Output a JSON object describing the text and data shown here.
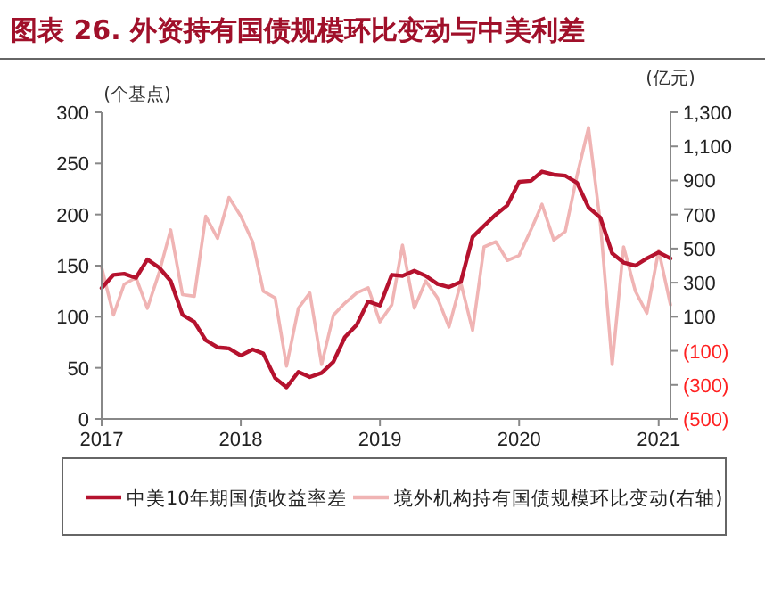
{
  "chart_data": {
    "type": "line",
    "title": "图表 26. 外资持有国债规模环比变动与中美利差",
    "ylabel": "(个基点)",
    "y2label": "(亿元)",
    "x": [
      "2017-01",
      "2017-02",
      "2017-03",
      "2017-04",
      "2017-05",
      "2017-06",
      "2017-07",
      "2017-08",
      "2017-09",
      "2017-10",
      "2017-11",
      "2017-12",
      "2018-01",
      "2018-02",
      "2018-03",
      "2018-04",
      "2018-05",
      "2018-06",
      "2018-07",
      "2018-08",
      "2018-09",
      "2018-10",
      "2018-11",
      "2018-12",
      "2019-01",
      "2019-02",
      "2019-03",
      "2019-04",
      "2019-05",
      "2019-06",
      "2019-07",
      "2019-08",
      "2019-09",
      "2019-10",
      "2019-11",
      "2019-12",
      "2020-01",
      "2020-02",
      "2020-03",
      "2020-04",
      "2020-05",
      "2020-06",
      "2020-07",
      "2020-08",
      "2020-09",
      "2020-10",
      "2020-11",
      "2020-12",
      "2021-01",
      "2021-02"
    ],
    "series": [
      {
        "name": "中美10年期国债收益率差",
        "color": "#b5122e",
        "values": [
          128,
          141,
          142,
          138,
          156,
          148,
          135,
          102,
          95,
          77,
          70,
          69,
          62,
          68,
          64,
          40,
          31,
          46,
          41,
          45,
          56,
          80,
          92,
          115,
          111,
          141,
          140,
          145,
          140,
          132,
          129,
          134,
          178,
          189,
          200,
          209,
          232,
          233,
          242,
          239,
          238,
          231,
          207,
          197,
          162,
          153,
          150,
          157,
          163,
          157
        ]
      },
      {
        "name": "境外机构持有国债规模环比变动(右轴)",
        "color": "#f0b4b4",
        "axis": "y2",
        "values": [
          390,
          110,
          290,
          330,
          150,
          360,
          610,
          230,
          220,
          690,
          560,
          800,
          690,
          540,
          250,
          210,
          -190,
          150,
          240,
          -180,
          110,
          180,
          240,
          270,
          70,
          170,
          520,
          150,
          310,
          210,
          40,
          300,
          20,
          510,
          540,
          430,
          460,
          610,
          760,
          550,
          600,
          930,
          1210,
          650,
          -180,
          510,
          250,
          120,
          490,
          170
        ]
      }
    ],
    "xlim": [
      "2017-01",
      "2021-02"
    ],
    "xticks": [
      {
        "value": "2017-01",
        "label": "2017"
      },
      {
        "value": "2018-01",
        "label": "2018"
      },
      {
        "value": "2019-01",
        "label": "2019"
      },
      {
        "value": "2020-01",
        "label": "2020"
      },
      {
        "value": "2021-01",
        "label": "2021"
      }
    ],
    "ylim": [
      0,
      300
    ],
    "yticks": [
      0,
      50,
      100,
      150,
      200,
      250,
      300
    ],
    "y2lim": [
      -500,
      1300
    ],
    "y2ticks": [
      {
        "value": -500,
        "label": "(500)"
      },
      {
        "value": -300,
        "label": "(300)"
      },
      {
        "value": -100,
        "label": "(100)"
      },
      100,
      300,
      500,
      700,
      900,
      {
        "value": 1100,
        "label": "1,100"
      },
      {
        "value": 1300,
        "label": "1,300"
      }
    ],
    "legend": "bottom",
    "grid": false,
    "line_style": "solid"
  }
}
